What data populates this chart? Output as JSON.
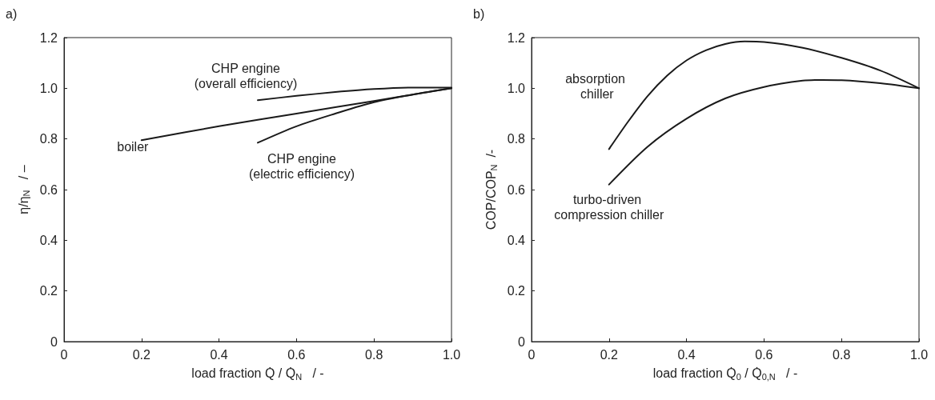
{
  "chart_data": [
    {
      "type": "line",
      "title": "a)",
      "xlabel": "load fraction Q̇ / Q̇$_{N}$   / -",
      "ylabel": "η/η$_{N}$   / –",
      "xlim": [
        0,
        1
      ],
      "xticks": [
        0,
        0.2,
        0.4,
        0.6,
        0.8,
        {
          "value": 1,
          "label": "1.0"
        }
      ],
      "ylim": [
        0,
        1.2
      ],
      "yticks": [
        0,
        0.2,
        0.4,
        0.6,
        0.8,
        {
          "value": 1,
          "label": "1.0"
        },
        1.2
      ],
      "grid": false,
      "legend": false,
      "marker": "none",
      "line_style": "solid",
      "series": [
        {
          "name": "CHP engine (overall efficiency)",
          "color": "#1a1a1a",
          "x": [
            0.5,
            0.6,
            0.7,
            0.8,
            0.9,
            1.0
          ],
          "values": [
            0.953,
            0.97,
            0.985,
            0.997,
            1.003,
            1.003
          ]
        },
        {
          "name": "boiler",
          "color": "#1a1a1a",
          "x": [
            0.2,
            0.4,
            0.6,
            0.8,
            1.0
          ],
          "values": [
            0.795,
            0.85,
            0.9,
            0.95,
            1.0
          ]
        },
        {
          "name": "CHP engine (electric efficiency)",
          "color": "#1a1a1a",
          "x": [
            0.5,
            0.6,
            0.7,
            0.8,
            0.9,
            1.0
          ],
          "values": [
            0.785,
            0.85,
            0.9,
            0.945,
            0.975,
            1.0
          ]
        }
      ]
    },
    {
      "type": "line",
      "title": "b)",
      "xlabel": "load fraction Q̇$_{0}$ / Q̇$_{0,N}$   / -",
      "ylabel": "COP/COP$_{N}$  /-",
      "xlim": [
        0,
        1
      ],
      "xticks": [
        0,
        0.2,
        0.4,
        0.6,
        0.8,
        {
          "value": 1,
          "label": "1.0"
        }
      ],
      "ylim": [
        0,
        1.2
      ],
      "yticks": [
        0,
        0.2,
        0.4,
        0.6,
        0.8,
        {
          "value": 1,
          "label": "1.0"
        },
        1.2
      ],
      "grid": false,
      "legend": false,
      "marker": "none",
      "line_style": "solid",
      "series": [
        {
          "name": "absorption chiller",
          "color": "#1a1a1a",
          "x": [
            0.2,
            0.25,
            0.3,
            0.35,
            0.4,
            0.45,
            0.5,
            0.55,
            0.6,
            0.7,
            0.8,
            0.9,
            1.0
          ],
          "values": [
            0.76,
            0.87,
            0.97,
            1.05,
            1.11,
            1.15,
            1.175,
            1.185,
            1.183,
            1.16,
            1.12,
            1.07,
            1.0
          ]
        },
        {
          "name": "turbo-driven compression chiller",
          "color": "#1a1a1a",
          "x": [
            0.2,
            0.3,
            0.4,
            0.5,
            0.6,
            0.7,
            0.75,
            0.8,
            0.9,
            1.0
          ],
          "values": [
            0.62,
            0.77,
            0.88,
            0.96,
            1.005,
            1.03,
            1.033,
            1.032,
            1.02,
            1.0
          ]
        }
      ]
    }
  ]
}
